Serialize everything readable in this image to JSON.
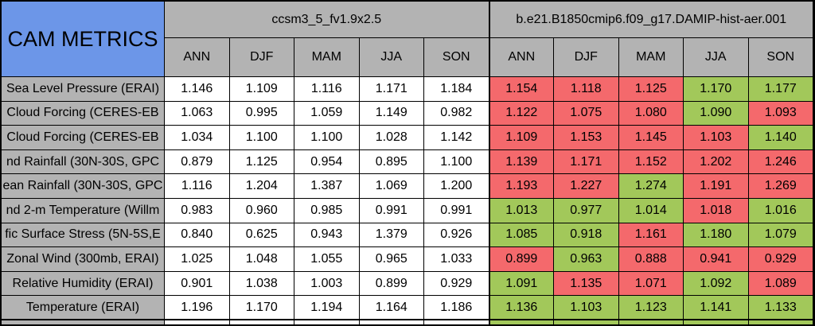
{
  "chart_data": {
    "type": "table",
    "title": "CAM METRICS",
    "column_groups": [
      "ccsm3_5_fv1.9x2.5",
      "b.e21.B1850cmip6.f09_g17.DAMIP-hist-aer.001"
    ],
    "season_columns": [
      "ANN",
      "DJF",
      "MAM",
      "JJA",
      "SON"
    ],
    "colors": {
      "header_blue": "#6C96E8",
      "header_gray": "#B3B3B3",
      "red": "#F4696C",
      "green": "#A2C85A",
      "white": "#FFFFFF",
      "border": "#000000"
    },
    "rows": [
      {
        "label": "Sea Level Pressure (ERAI)",
        "ccsm3_5": [
          "1.146",
          "1.109",
          "1.116",
          "1.171",
          "1.184"
        ],
        "damip": [
          "1.154",
          "1.118",
          "1.125",
          "1.170",
          "1.177"
        ],
        "damip_cell_colors": [
          "red",
          "red",
          "red",
          "green",
          "green"
        ]
      },
      {
        "label": "Cloud Forcing (CERES-EB",
        "ccsm3_5": [
          "1.063",
          "0.995",
          "1.059",
          "1.149",
          "0.982"
        ],
        "damip": [
          "1.122",
          "1.075",
          "1.080",
          "1.090",
          "1.093"
        ],
        "damip_cell_colors": [
          "red",
          "red",
          "red",
          "green",
          "red"
        ]
      },
      {
        "label": "Cloud Forcing (CERES-EB",
        "ccsm3_5": [
          "1.034",
          "1.100",
          "1.100",
          "1.028",
          "1.142"
        ],
        "damip": [
          "1.109",
          "1.153",
          "1.145",
          "1.103",
          "1.140"
        ],
        "damip_cell_colors": [
          "red",
          "red",
          "red",
          "red",
          "green"
        ]
      },
      {
        "label": "nd Rainfall (30N-30S, GPC",
        "ccsm3_5": [
          "0.879",
          "1.125",
          "0.954",
          "0.895",
          "1.100"
        ],
        "damip": [
          "1.139",
          "1.171",
          "1.152",
          "1.202",
          "1.246"
        ],
        "damip_cell_colors": [
          "red",
          "red",
          "red",
          "red",
          "red"
        ]
      },
      {
        "label": "ean Rainfall (30N-30S, GPC",
        "ccsm3_5": [
          "1.116",
          "1.204",
          "1.387",
          "1.069",
          "1.200"
        ],
        "damip": [
          "1.193",
          "1.227",
          "1.274",
          "1.191",
          "1.269"
        ],
        "damip_cell_colors": [
          "red",
          "red",
          "green",
          "red",
          "red"
        ]
      },
      {
        "label": "nd 2-m Temperature (Willm",
        "ccsm3_5": [
          "0.983",
          "0.960",
          "0.985",
          "0.991",
          "0.991"
        ],
        "damip": [
          "1.013",
          "0.977",
          "1.014",
          "1.018",
          "1.016"
        ],
        "damip_cell_colors": [
          "green",
          "green",
          "green",
          "red",
          "green"
        ]
      },
      {
        "label": "fic Surface Stress (5N-5S,E",
        "ccsm3_5": [
          "0.840",
          "0.625",
          "0.943",
          "1.379",
          "0.926"
        ],
        "damip": [
          "1.085",
          "0.918",
          "1.161",
          "1.180",
          "1.079"
        ],
        "damip_cell_colors": [
          "green",
          "green",
          "red",
          "green",
          "green"
        ]
      },
      {
        "label": "Zonal Wind (300mb, ERAI)",
        "ccsm3_5": [
          "1.025",
          "1.048",
          "1.055",
          "0.965",
          "1.033"
        ],
        "damip": [
          "0.899",
          "0.963",
          "0.888",
          "0.941",
          "0.929"
        ],
        "damip_cell_colors": [
          "red",
          "green",
          "red",
          "red",
          "red"
        ]
      },
      {
        "label": "Relative Humidity (ERAI)",
        "ccsm3_5": [
          "0.901",
          "1.038",
          "1.003",
          "0.899",
          "0.929"
        ],
        "damip": [
          "1.091",
          "1.135",
          "1.071",
          "1.092",
          "1.089"
        ],
        "damip_cell_colors": [
          "green",
          "red",
          "red",
          "green",
          "red"
        ]
      },
      {
        "label": "Temperature (ERAI)",
        "ccsm3_5": [
          "1.196",
          "1.170",
          "1.194",
          "1.164",
          "1.186"
        ],
        "damip": [
          "1.136",
          "1.103",
          "1.123",
          "1.141",
          "1.133"
        ],
        "damip_cell_colors": [
          "green",
          "green",
          "green",
          "green",
          "green"
        ]
      }
    ],
    "partial_next_row": {
      "label_cell_color": "header_gray",
      "ccsm3_5_cell_color": "white",
      "damip_cell_color": "green"
    }
  }
}
